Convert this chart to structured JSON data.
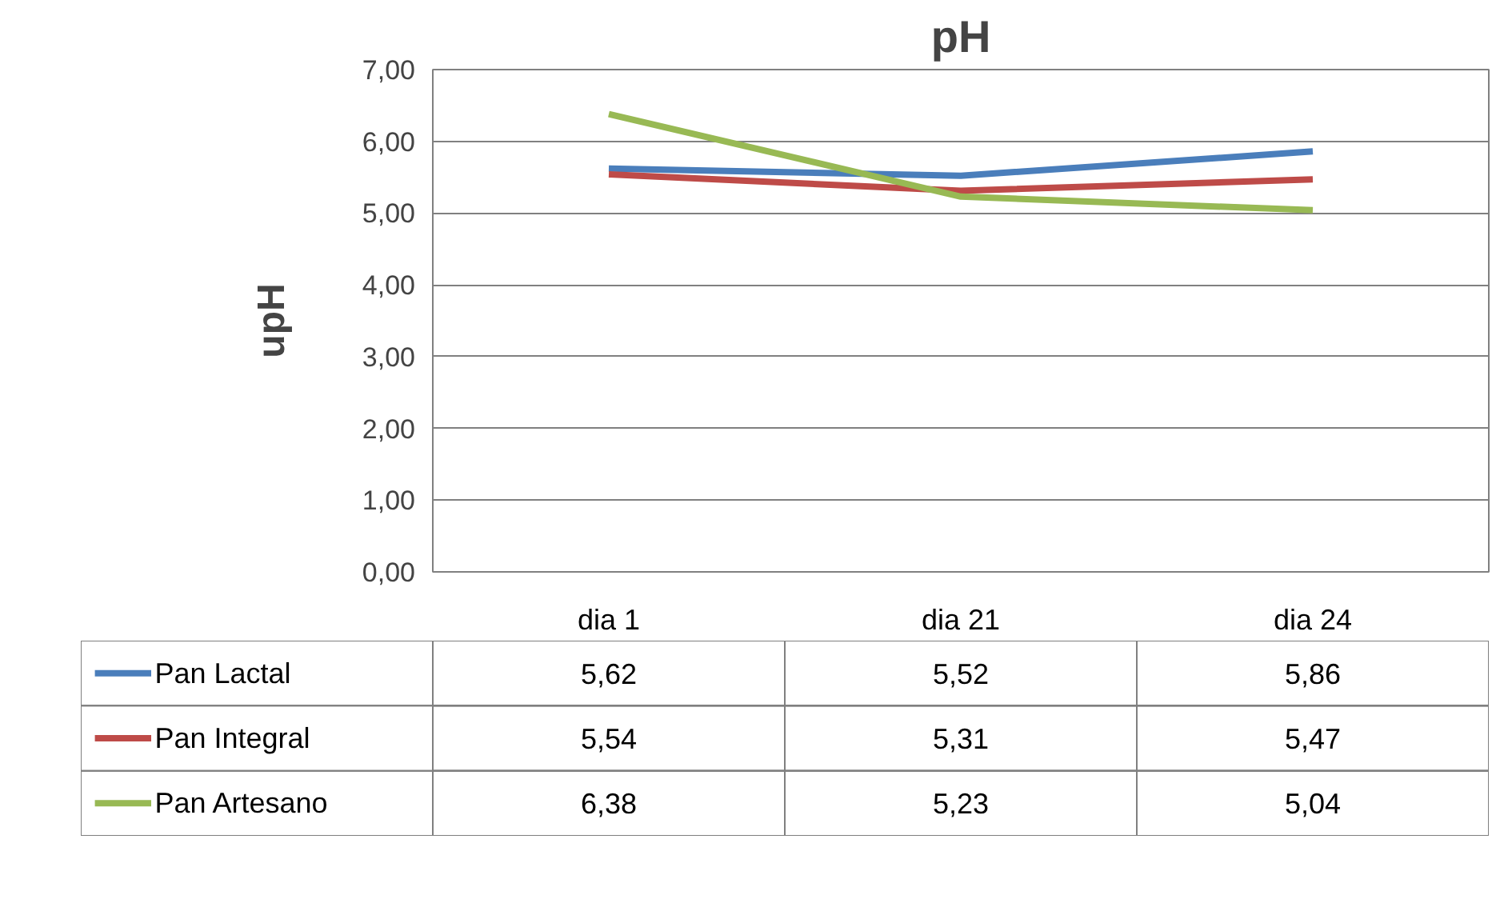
{
  "chart_data": {
    "type": "line",
    "title": "pH",
    "ylabel": "upH",
    "categories": [
      "dia 1",
      "dia 21",
      "dia 24"
    ],
    "series": [
      {
        "name": "Pan Lactal",
        "color": "#4a7ebb",
        "values": [
          5.62,
          5.52,
          5.86
        ],
        "value_labels": [
          "5,62",
          "5,52",
          "5,86"
        ]
      },
      {
        "name": "Pan Integral",
        "color": "#be4b48",
        "values": [
          5.54,
          5.31,
          5.47
        ],
        "value_labels": [
          "5,54",
          "5,31",
          "5,47"
        ]
      },
      {
        "name": "Pan Artesano",
        "color": "#98b954",
        "values": [
          6.38,
          5.23,
          5.04
        ],
        "value_labels": [
          "6,38",
          "5,23",
          "5,04"
        ]
      }
    ],
    "ylim": [
      0,
      7
    ],
    "yticks": [
      {
        "value": 0,
        "label": "0,00"
      },
      {
        "value": 1,
        "label": "1,00"
      },
      {
        "value": 2,
        "label": "2,00"
      },
      {
        "value": 3,
        "label": "3,00"
      },
      {
        "value": 4,
        "label": "4,00"
      },
      {
        "value": 5,
        "label": "5,00"
      },
      {
        "value": 6,
        "label": "6,00"
      },
      {
        "value": 7,
        "label": "7,00"
      }
    ],
    "grid": "y",
    "legend": "bottom",
    "marker": "none",
    "line_style": "solid"
  }
}
